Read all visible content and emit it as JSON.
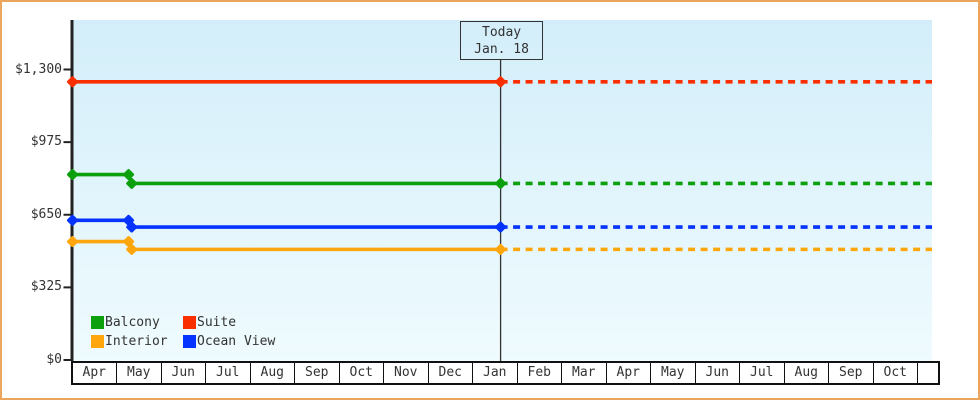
{
  "colors": {
    "frame_border": "#eba55c",
    "plot_bg_top": "#d3eefa",
    "plot_bg_bottom": "#effbfe",
    "axis": "#222222",
    "text": "#333333",
    "today_line": "#333333",
    "month_border": "#111111"
  },
  "chart_data": {
    "type": "line",
    "title": "",
    "y_axis": {
      "tick_labels": [
        "$0",
        "$325",
        "$650",
        "$975",
        "$1,300"
      ],
      "tick_values": [
        0,
        325,
        650,
        975,
        1300
      ],
      "range": [
        0,
        1300
      ],
      "currency": "USD"
    },
    "x_axis": {
      "categories": [
        "Apr",
        "May",
        "Jun",
        "Jul",
        "Aug",
        "Sep",
        "Oct",
        "Nov",
        "Dec",
        "Jan",
        "Feb",
        "Mar",
        "Apr",
        "May",
        "Jun",
        "Jul",
        "Aug",
        "Sep",
        "Oct"
      ],
      "trailing_empty_cell": true
    },
    "today": {
      "line1": "Today",
      "line2": "Jan. 18",
      "month_index": 9.62
    },
    "projection_end_index": 19.32,
    "projection_style": "flat dashed line from today marker to right edge of plot",
    "series": [
      {
        "name": "Suite",
        "color": "#fa2f00",
        "points": [
          [
            0,
            1245
          ],
          [
            9.62,
            1245
          ]
        ]
      },
      {
        "name": "Balcony",
        "color": "#0ca00c",
        "points": [
          [
            0,
            830
          ],
          [
            1.26,
            830
          ],
          [
            1.33,
            790
          ],
          [
            9.62,
            790
          ]
        ]
      },
      {
        "name": "Ocean View",
        "color": "#0433ff",
        "points": [
          [
            0,
            625
          ],
          [
            1.26,
            625
          ],
          [
            1.33,
            595
          ],
          [
            9.62,
            595
          ]
        ]
      },
      {
        "name": "Interior",
        "color": "#ffa60d",
        "points": [
          [
            0,
            530
          ],
          [
            1.26,
            530
          ],
          [
            1.33,
            495
          ],
          [
            9.62,
            495
          ]
        ]
      }
    ],
    "legend": {
      "rows": [
        [
          "Balcony",
          "Suite"
        ],
        [
          "Interior",
          "Ocean View"
        ]
      ],
      "position": "bottom-left"
    }
  }
}
